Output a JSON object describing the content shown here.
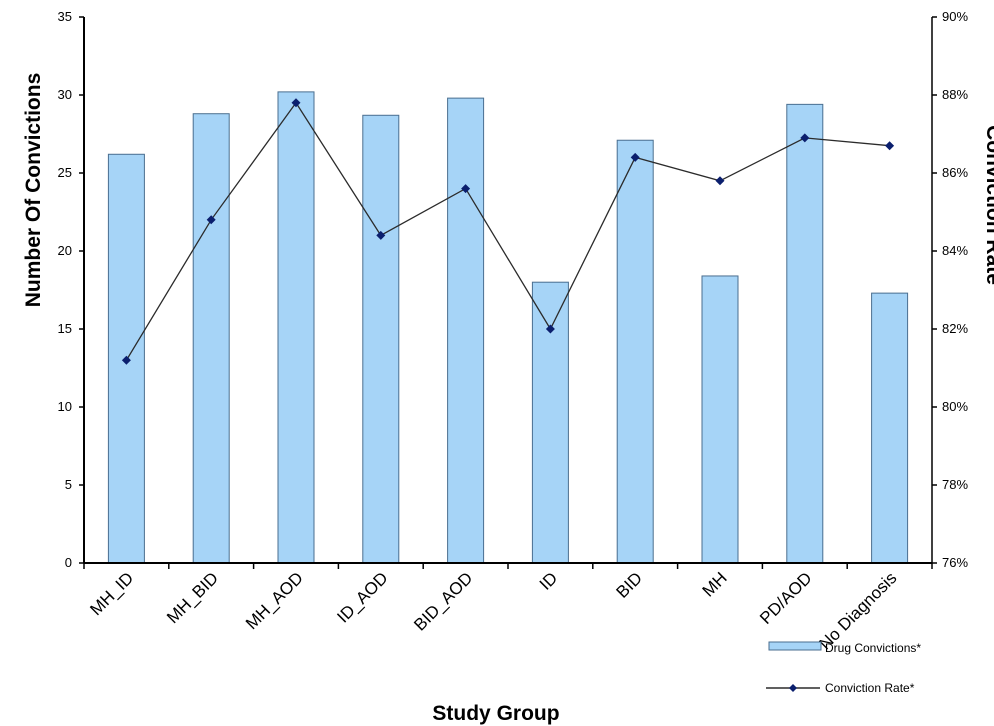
{
  "chart_data": {
    "type": "bar",
    "categories": [
      "MH_ID",
      "MH_BID",
      "MH_AOD",
      "ID_AOD",
      "BID_AOD",
      "ID",
      "BID",
      "MH",
      "PD/AOD",
      "No Diagnosis"
    ],
    "series": [
      {
        "name": "Drug Convictions*",
        "type": "bar",
        "axis": "left",
        "values": [
          26.2,
          28.8,
          30.2,
          28.7,
          29.8,
          18.0,
          27.1,
          18.4,
          29.4,
          17.3
        ]
      },
      {
        "name": "Conviction Rate*",
        "type": "line",
        "axis": "right",
        "values": [
          81.2,
          84.8,
          87.8,
          84.4,
          85.6,
          82.0,
          86.4,
          85.8,
          86.9,
          86.7
        ]
      }
    ],
    "xlabel": "Study Group",
    "ylabel": "Number Of Convictions",
    "y2label": "Conviction Rate",
    "ylim": [
      0,
      35
    ],
    "y2lim": [
      76,
      90
    ],
    "yticks": [
      "0",
      "5",
      "10",
      "15",
      "20",
      "25",
      "30",
      "35"
    ],
    "y2ticks": [
      "76%",
      "78%",
      "80%",
      "82%",
      "84%",
      "86%",
      "88%",
      "90%"
    ],
    "grid": false,
    "legend": "bottom-right",
    "colors": {
      "bar_fill": "#a6d4f7",
      "bar_stroke": "#4a6e8f",
      "line": "#2b2b2b",
      "marker": "#0b1f6e"
    }
  }
}
